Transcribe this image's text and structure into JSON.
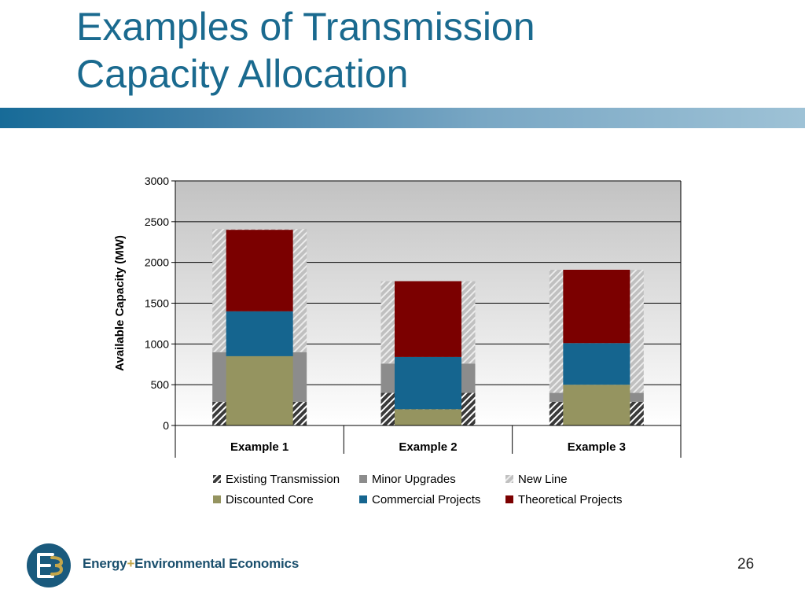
{
  "slide": {
    "title_line1": "Examples of Transmission",
    "title_line2": "Capacity Allocation",
    "page_number": "26"
  },
  "footer": {
    "company_part1": "Energy",
    "company_plus": "+",
    "company_part2": "Environmental Economics",
    "logo_icon": "e3-logo-icon"
  },
  "colors": {
    "title": "#1a6a8f",
    "existing_transmission": "#3a3a3a",
    "minor_upgrades": "#8c8c8c",
    "new_line": "#c0c0c0",
    "discounted_core": "#959460",
    "commercial_projects": "#15658f",
    "theoretical_projects": "#7b0000"
  },
  "chart_data": {
    "type": "bar",
    "categories": [
      "Example 1",
      "Example 2",
      "Example 3"
    ],
    "ylabel": "Available Capacity (MW)",
    "ylim": [
      0,
      3000
    ],
    "yticks": [
      0,
      500,
      1000,
      1500,
      2000,
      2500,
      3000
    ],
    "grid": true,
    "legend_position": "bottom",
    "physical_series": [
      {
        "name": "Existing Transmission",
        "values": [
          290,
          400,
          290
        ]
      },
      {
        "name": "Minor Upgrades",
        "values": [
          610,
          360,
          110
        ]
      },
      {
        "name": "New Line",
        "values": [
          1510,
          1010,
          1510
        ]
      }
    ],
    "allocation_series": [
      {
        "name": "Discounted Core",
        "values": [
          850,
          200,
          500
        ]
      },
      {
        "name": "Commercial Projects",
        "values": [
          550,
          640,
          510
        ]
      },
      {
        "name": "Theoretical Projects",
        "values": [
          1000,
          930,
          900
        ]
      }
    ],
    "legend": [
      "Existing Transmission",
      "Minor Upgrades",
      "New Line",
      "Discounted Core",
      "Commercial Projects",
      "Theoretical Projects"
    ]
  }
}
